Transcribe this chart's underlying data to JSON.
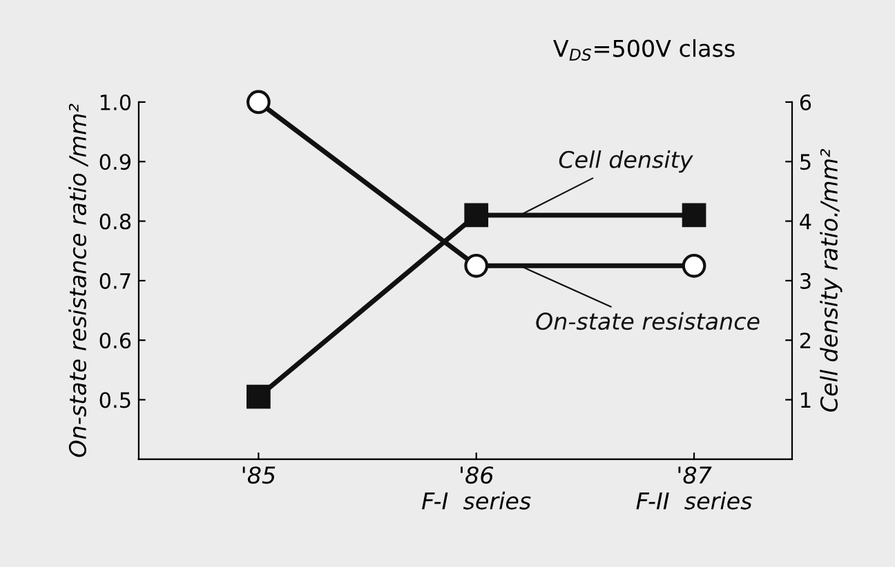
{
  "chart_data": {
    "type": "line",
    "categories": [
      "'85",
      "'86\nF-I  series",
      "'87\nF-II  series"
    ],
    "series": [
      {
        "name": "On-state resistance",
        "color": "#111111",
        "marker": "circle",
        "values": [
          1.0,
          0.725,
          0.725
        ]
      },
      {
        "name": "Cell density",
        "color": "#111111",
        "marker": "square",
        "axis": "y2",
        "values": [
          1.05,
          4.1,
          4.1
        ]
      }
    ],
    "ylabel": "On-state resistance ratio /mm²",
    "y2label": "Cell density ratio./mm²",
    "ylim": [
      0.4,
      1.0
    ],
    "yticks": [
      {
        "value": 0.5,
        "label": "0.5"
      },
      {
        "value": 0.6,
        "label": "0.6"
      },
      {
        "value": 0.7,
        "label": "0.7"
      },
      {
        "value": 0.8,
        "label": "0.8"
      },
      {
        "value": 0.9,
        "label": "0.9"
      },
      {
        "value": 1.0,
        "label": "1.0"
      }
    ],
    "y2lim": [
      0,
      6
    ],
    "y2ticks": [
      1,
      2,
      3,
      4,
      5,
      6
    ],
    "annotations": [
      "V$_{DS}$=500V class"
    ],
    "grid": false,
    "legend": "right",
    "line_style": "solid"
  }
}
